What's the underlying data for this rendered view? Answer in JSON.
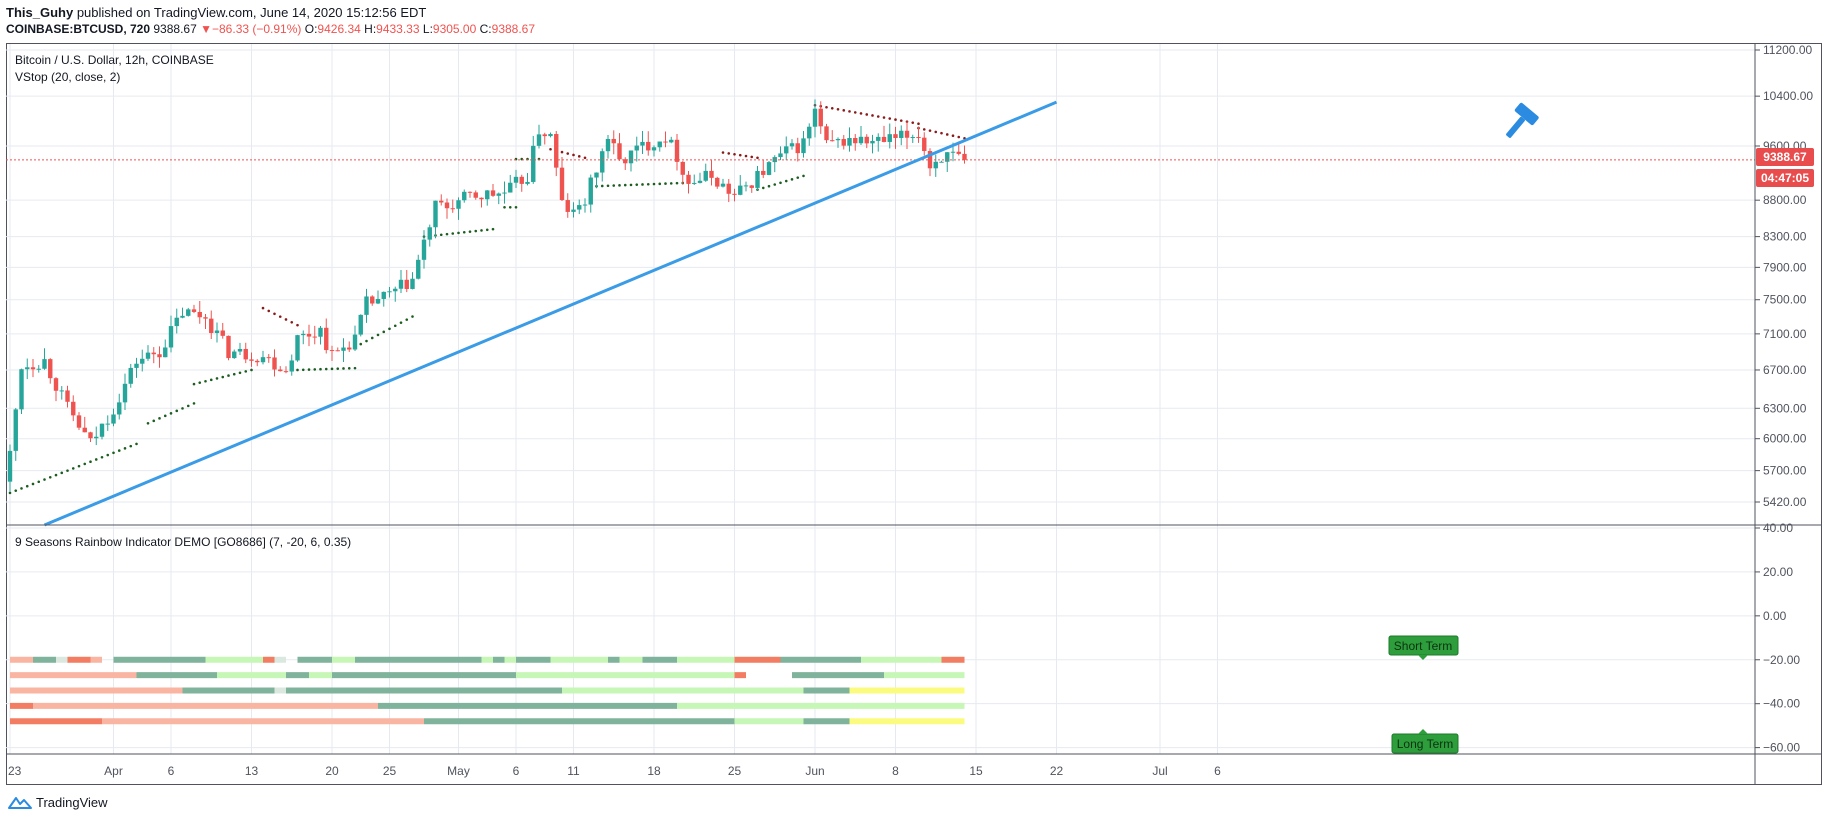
{
  "header": {
    "author": "This_Guhy",
    "published_text": "published on TradingView.com, June 14, 2020 15:12:56 EDT",
    "symbol": "COINBASE:BTCUSD, 720",
    "last_price": "9388.67",
    "change": "−86.33 (−0.91%)",
    "open_label": "O:",
    "open": "9426.34",
    "high_label": "H:",
    "high": "9433.33",
    "low_label": "L:",
    "low": "9305.00",
    "close_label": "C:",
    "close": "9388.67"
  },
  "price_pane": {
    "legend_title": "Bitcoin / U.S. Dollar, 12h, COINBASE",
    "legend_indicator": "VStop (20, close, 2)",
    "price_tag": "9388.67",
    "countdown_tag": "04:47:05"
  },
  "indicator_pane": {
    "legend_title": "9 Seasons Rainbow Indicator DEMO [GO8686] (7, -20, 6, 0.35)",
    "short_term_label": "Short Term",
    "long_term_label": "Long Term"
  },
  "footer": {
    "brand": "TradingView"
  },
  "colors": {
    "up": "#26a69a",
    "down": "#ef5350",
    "trendline": "#3a9be6",
    "stop_up": "#1b5e20",
    "stop_down": "#8b1a1a",
    "grid": "#e6eaf0",
    "tag_bg": "#e84c4c",
    "label_bg": "#2e9e3c",
    "hammer": "#2a8be0"
  },
  "chart_data": [
    {
      "type": "candlestick",
      "title": "Bitcoin / U.S. Dollar, 12h, COINBASE",
      "y_scale": "log",
      "ylim": [
        5200,
        11300
      ],
      "y_ticks": [
        "11200.00",
        "10400.00",
        "9600.00",
        "8800.00",
        "8300.00",
        "7900.00",
        "7500.00",
        "7100.00",
        "6700.00",
        "6300.00",
        "6000.00",
        "5700.00",
        "5420.00"
      ],
      "x_ticks": [
        "23",
        "Apr",
        "6",
        "13",
        "20",
        "25",
        "May",
        "6",
        "11",
        "18",
        "25",
        "Jun",
        "8",
        "15",
        "22",
        "Jul",
        "6"
      ],
      "last_close": 9388.67,
      "anchors": [
        {
          "date": "2020-03-23",
          "close": 5850
        },
        {
          "date": "2020-03-24",
          "close": 6750
        },
        {
          "date": "2020-03-26",
          "close": 6800
        },
        {
          "date": "2020-03-28",
          "close": 6300
        },
        {
          "date": "2020-03-30",
          "close": 5950
        },
        {
          "date": "2020-04-01",
          "close": 6300
        },
        {
          "date": "2020-04-03",
          "close": 6800
        },
        {
          "date": "2020-04-05",
          "close": 6900
        },
        {
          "date": "2020-04-07",
          "close": 7350
        },
        {
          "date": "2020-04-09",
          "close": 7300
        },
        {
          "date": "2020-04-11",
          "close": 6900
        },
        {
          "date": "2020-04-14",
          "close": 6850
        },
        {
          "date": "2020-04-16",
          "close": 6700
        },
        {
          "date": "2020-04-17",
          "close": 7050
        },
        {
          "date": "2020-04-19",
          "close": 7150
        },
        {
          "date": "2020-04-20",
          "close": 6850
        },
        {
          "date": "2020-04-22",
          "close": 7050
        },
        {
          "date": "2020-04-23",
          "close": 7450
        },
        {
          "date": "2020-04-25",
          "close": 7550
        },
        {
          "date": "2020-04-27",
          "close": 7750
        },
        {
          "date": "2020-04-29",
          "close": 8700
        },
        {
          "date": "2020-04-30",
          "close": 8700
        },
        {
          "date": "2020-05-02",
          "close": 8850
        },
        {
          "date": "2020-05-05",
          "close": 8900
        },
        {
          "date": "2020-05-07",
          "close": 9150
        },
        {
          "date": "2020-05-08",
          "close": 9850
        },
        {
          "date": "2020-05-09",
          "close": 9750
        },
        {
          "date": "2020-05-10",
          "close": 8750
        },
        {
          "date": "2020-05-11",
          "close": 8600
        },
        {
          "date": "2020-05-12",
          "close": 8800
        },
        {
          "date": "2020-05-13",
          "close": 9250
        },
        {
          "date": "2020-05-14",
          "close": 9750
        },
        {
          "date": "2020-05-15",
          "close": 9350
        },
        {
          "date": "2020-05-17",
          "close": 9600
        },
        {
          "date": "2020-05-19",
          "close": 9750
        },
        {
          "date": "2020-05-20",
          "close": 9450
        },
        {
          "date": "2020-05-21",
          "close": 9050
        },
        {
          "date": "2020-05-23",
          "close": 9150
        },
        {
          "date": "2020-05-25",
          "close": 8850
        },
        {
          "date": "2020-05-27",
          "close": 9150
        },
        {
          "date": "2020-05-29",
          "close": 9450
        },
        {
          "date": "2020-05-31",
          "close": 9650
        },
        {
          "date": "2020-06-01",
          "close": 10150
        },
        {
          "date": "2020-06-02",
          "close": 9600
        },
        {
          "date": "2020-06-04",
          "close": 9700
        },
        {
          "date": "2020-06-06",
          "close": 9650
        },
        {
          "date": "2020-06-08",
          "close": 9700
        },
        {
          "date": "2020-06-10",
          "close": 9800
        },
        {
          "date": "2020-06-11",
          "close": 9300
        },
        {
          "date": "2020-06-12",
          "close": 9450
        },
        {
          "date": "2020-06-14",
          "close": 9389
        }
      ],
      "vstop_segments": [
        {
          "trend": "up",
          "from": "2020-03-23",
          "to": "2020-04-03",
          "start": 5500,
          "end": 5950
        },
        {
          "trend": "up",
          "from": "2020-04-04",
          "to": "2020-04-08",
          "start": 6150,
          "end": 6350
        },
        {
          "trend": "up",
          "from": "2020-04-08",
          "to": "2020-04-13",
          "start": 6550,
          "end": 6700
        },
        {
          "trend": "down",
          "from": "2020-04-14",
          "to": "2020-04-17",
          "start": 7400,
          "end": 7200
        },
        {
          "trend": "up",
          "from": "2020-04-17",
          "to": "2020-04-22",
          "start": 6700,
          "end": 6720
        },
        {
          "trend": "up",
          "from": "2020-04-22",
          "to": "2020-04-27",
          "start": 6950,
          "end": 7300
        },
        {
          "trend": "up",
          "from": "2020-04-28",
          "to": "2020-05-04",
          "start": 8300,
          "end": 8400
        },
        {
          "trend": "up",
          "from": "2020-05-05",
          "to": "2020-05-06",
          "start": 8700,
          "end": 8700
        },
        {
          "trend": "up",
          "from": "2020-05-06",
          "to": "2020-05-08",
          "start": 9400,
          "end": 9400
        },
        {
          "trend": "down",
          "from": "2020-05-09",
          "to": "2020-05-12",
          "start": 9550,
          "end": 9420
        },
        {
          "trend": "up",
          "from": "2020-05-13",
          "to": "2020-05-21",
          "start": 9000,
          "end": 9050
        },
        {
          "trend": "down",
          "from": "2020-05-24",
          "to": "2020-05-27",
          "start": 9500,
          "end": 9420
        },
        {
          "trend": "up",
          "from": "2020-05-27",
          "to": "2020-05-31",
          "start": 8950,
          "end": 9150
        },
        {
          "trend": "down",
          "from": "2020-06-01",
          "to": "2020-06-10",
          "start": 10250,
          "end": 9950
        },
        {
          "trend": "down",
          "from": "2020-06-10",
          "to": "2020-06-14",
          "start": 9880,
          "end": 9720
        }
      ],
      "trendline": [
        {
          "date": "2020-03-26",
          "price": 5200
        },
        {
          "date": "2020-06-22",
          "price": 10300
        }
      ],
      "hline_price": 9388.67
    },
    {
      "type": "heatmap",
      "title": "9 Seasons Rainbow Indicator DEMO [GO8686] (7, -20, 6, 0.35)",
      "ylim": [
        -62,
        40
      ],
      "y_ticks": [
        "40.00",
        "20.00",
        "0.00",
        "−20.00",
        "−40.00",
        "−60.00"
      ],
      "rows": [
        {
          "y": -20,
          "segments": [
            [
              "2020-03-23",
              "2020-03-25",
              "salmon"
            ],
            [
              "2020-03-25",
              "2020-03-27",
              "teal"
            ],
            [
              "2020-03-27",
              "2020-03-28",
              "light"
            ],
            [
              "2020-03-28",
              "2020-03-30",
              "orange"
            ],
            [
              "2020-03-30",
              "2020-03-31",
              "salmon"
            ],
            [
              "2020-04-01",
              "2020-04-09",
              "teal"
            ],
            [
              "2020-04-09",
              "2020-04-14",
              "lime"
            ],
            [
              "2020-04-14",
              "2020-04-15",
              "orange"
            ],
            [
              "2020-04-15",
              "2020-04-16",
              "light"
            ],
            [
              "2020-04-17",
              "2020-04-20",
              "teal"
            ],
            [
              "2020-04-20",
              "2020-04-22",
              "lime"
            ],
            [
              "2020-04-22",
              "2020-05-03",
              "teal"
            ],
            [
              "2020-05-03",
              "2020-05-04",
              "lime"
            ],
            [
              "2020-05-04",
              "2020-05-05",
              "teal"
            ],
            [
              "2020-05-05",
              "2020-05-06",
              "lime"
            ],
            [
              "2020-05-06",
              "2020-05-09",
              "teal"
            ],
            [
              "2020-05-09",
              "2020-05-14",
              "lime"
            ],
            [
              "2020-05-14",
              "2020-05-15",
              "teal"
            ],
            [
              "2020-05-15",
              "2020-05-17",
              "lime"
            ],
            [
              "2020-05-17",
              "2020-05-20",
              "teal"
            ],
            [
              "2020-05-20",
              "2020-05-25",
              "lime"
            ],
            [
              "2020-05-25",
              "2020-05-29",
              "orange"
            ],
            [
              "2020-05-29",
              "2020-06-05",
              "teal"
            ],
            [
              "2020-06-05",
              "2020-06-12",
              "lime"
            ],
            [
              "2020-06-12",
              "2020-06-14",
              "orange"
            ]
          ]
        },
        {
          "y": -27,
          "segments": [
            [
              "2020-03-23",
              "2020-04-03",
              "salmon"
            ],
            [
              "2020-04-03",
              "2020-04-10",
              "teal"
            ],
            [
              "2020-04-10",
              "2020-04-16",
              "lime"
            ],
            [
              "2020-04-16",
              "2020-04-18",
              "teal"
            ],
            [
              "2020-04-18",
              "2020-04-20",
              "lime"
            ],
            [
              "2020-04-20",
              "2020-05-06",
              "teal"
            ],
            [
              "2020-05-06",
              "2020-05-25",
              "lime"
            ],
            [
              "2020-05-25",
              "2020-05-26",
              "orange"
            ],
            [
              "2020-05-30",
              "2020-06-07",
              "teal"
            ],
            [
              "2020-06-07",
              "2020-06-14",
              "lime"
            ]
          ]
        },
        {
          "y": -34,
          "segments": [
            [
              "2020-03-23",
              "2020-04-07",
              "salmon"
            ],
            [
              "2020-04-07",
              "2020-04-15",
              "teal"
            ],
            [
              "2020-04-15",
              "2020-04-16",
              "light"
            ],
            [
              "2020-04-16",
              "2020-05-10",
              "teal"
            ],
            [
              "2020-05-10",
              "2020-05-31",
              "lime"
            ],
            [
              "2020-05-31",
              "2020-06-04",
              "teal"
            ],
            [
              "2020-06-04",
              "2020-06-14",
              "yellow"
            ]
          ]
        },
        {
          "y": -41,
          "segments": [
            [
              "2020-03-23",
              "2020-03-25",
              "orange"
            ],
            [
              "2020-03-25",
              "2020-04-24",
              "salmon"
            ],
            [
              "2020-04-24",
              "2020-05-20",
              "teal"
            ],
            [
              "2020-05-20",
              "2020-06-14",
              "lime"
            ]
          ]
        },
        {
          "y": -48,
          "segments": [
            [
              "2020-03-23",
              "2020-03-31",
              "orange"
            ],
            [
              "2020-03-31",
              "2020-04-28",
              "salmon"
            ],
            [
              "2020-04-28",
              "2020-05-25",
              "teal"
            ],
            [
              "2020-05-25",
              "2020-05-31",
              "lime"
            ],
            [
              "2020-05-31",
              "2020-06-04",
              "teal"
            ],
            [
              "2020-06-04",
              "2020-06-14",
              "yellow"
            ]
          ]
        }
      ],
      "palette": {
        "salmon": "#f9b5a2",
        "orange": "#f27d62",
        "teal": "#7fb39b",
        "lime": "#c6f7b6",
        "light": "#dbe8df",
        "yellow": "#fbfb7f"
      }
    }
  ]
}
